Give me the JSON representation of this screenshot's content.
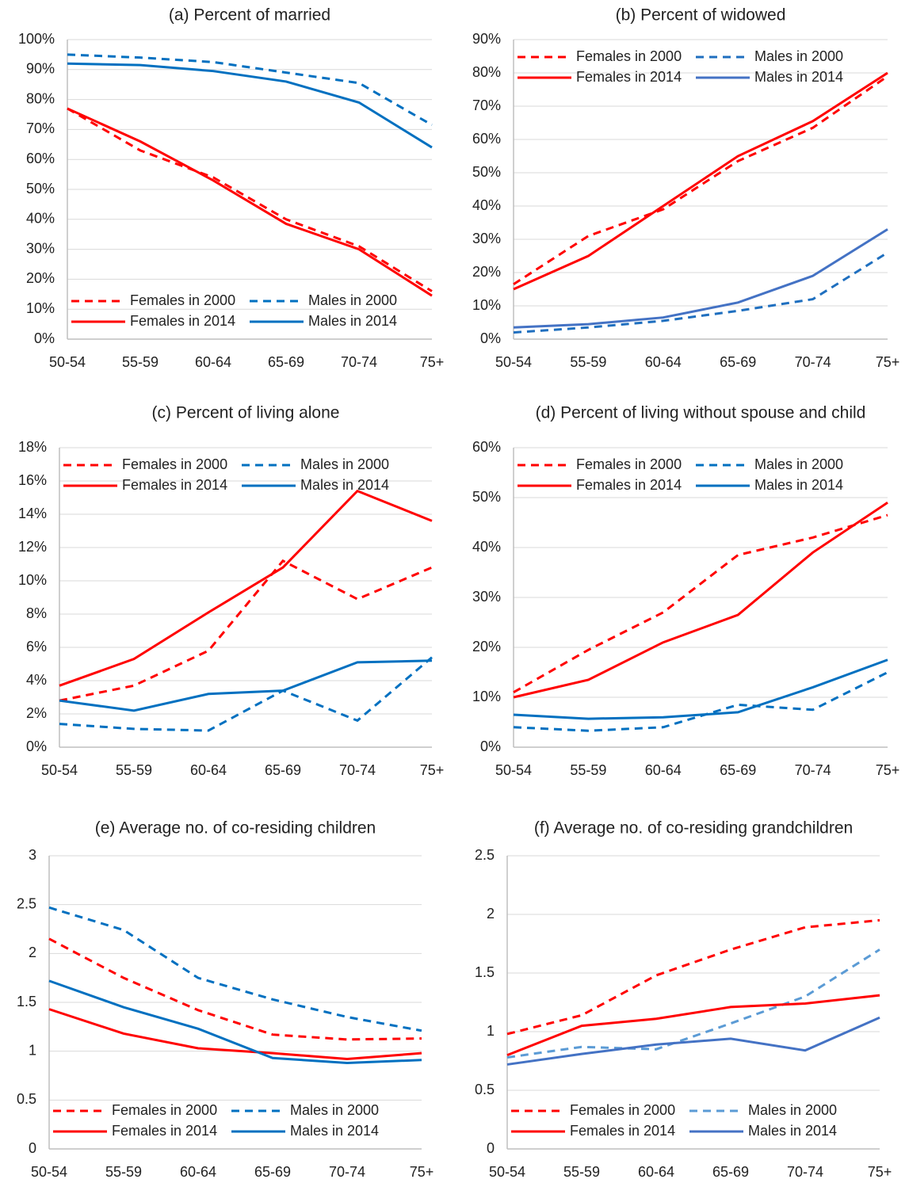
{
  "chart_data": [
    {
      "type": "line",
      "title": "(a) Percent of married",
      "categories": [
        "50-54",
        "55-59",
        "60-64",
        "65-69",
        "70-74",
        "75+"
      ],
      "ylim": [
        0,
        100
      ],
      "yticks": [
        {
          "value": 0,
          "label": "0%"
        },
        {
          "value": 10,
          "label": "10%"
        },
        {
          "value": 20,
          "label": "20%"
        },
        {
          "value": 30,
          "label": "30%"
        },
        {
          "value": 40,
          "label": "40%"
        },
        {
          "value": 50,
          "label": "50%"
        },
        {
          "value": 60,
          "label": "60%"
        },
        {
          "value": 70,
          "label": "70%"
        },
        {
          "value": 80,
          "label": "80%"
        },
        {
          "value": 90,
          "label": "90%"
        },
        {
          "value": 100,
          "label": "100%"
        }
      ],
      "grid": true,
      "legend": "lower center",
      "series": [
        {
          "name": "Females in 2000",
          "color": "#ff0000",
          "style": "dashed",
          "values": [
            77,
            63,
            54,
            40,
            31,
            16
          ]
        },
        {
          "name": "Males in 2000",
          "color": "#0070c0",
          "style": "dashed",
          "values": [
            95,
            94,
            92.5,
            89,
            85.5,
            71.5
          ]
        },
        {
          "name": "Females in 2014",
          "color": "#ff0000",
          "style": "solid",
          "values": [
            77,
            66,
            53,
            38.5,
            30,
            14.5
          ]
        },
        {
          "name": "Males in 2014",
          "color": "#0070c0",
          "style": "solid",
          "values": [
            92,
            91.5,
            89.5,
            86,
            79,
            64
          ]
        }
      ]
    },
    {
      "type": "line",
      "title": "(b) Percent of widowed",
      "categories": [
        "50-54",
        "55-59",
        "60-64",
        "65-69",
        "70-74",
        "75+"
      ],
      "ylim": [
        0,
        90
      ],
      "yticks": [
        {
          "value": 0,
          "label": "0%"
        },
        {
          "value": 10,
          "label": "10%"
        },
        {
          "value": 20,
          "label": "20%"
        },
        {
          "value": 30,
          "label": "30%"
        },
        {
          "value": 40,
          "label": "40%"
        },
        {
          "value": 50,
          "label": "50%"
        },
        {
          "value": 60,
          "label": "60%"
        },
        {
          "value": 70,
          "label": "70%"
        },
        {
          "value": 80,
          "label": "80%"
        },
        {
          "value": 90,
          "label": "90%"
        }
      ],
      "grid": true,
      "legend": "upper center",
      "series": [
        {
          "name": "Females in 2000",
          "color": "#ff0000",
          "style": "dashed",
          "values": [
            16.5,
            31,
            39,
            53.5,
            63.5,
            79
          ]
        },
        {
          "name": "Males in 2000",
          "color": "#1f6fbf",
          "style": "dashed",
          "values": [
            2,
            3.5,
            5.5,
            8.5,
            12,
            26
          ]
        },
        {
          "name": "Females in 2014",
          "color": "#ff0000",
          "style": "solid",
          "values": [
            15,
            25,
            40,
            55,
            65.5,
            80
          ]
        },
        {
          "name": "Males in 2014",
          "color": "#4472c4",
          "style": "solid",
          "values": [
            3.5,
            4.5,
            6.5,
            11,
            19,
            33
          ]
        }
      ]
    },
    {
      "type": "line",
      "title": "(c) Percent of living alone",
      "categories": [
        "50-54",
        "55-59",
        "60-64",
        "65-69",
        "70-74",
        "75+"
      ],
      "ylim": [
        0,
        18
      ],
      "yticks": [
        {
          "value": 0,
          "label": "0%"
        },
        {
          "value": 2,
          "label": "2%"
        },
        {
          "value": 4,
          "label": "4%"
        },
        {
          "value": 6,
          "label": "6%"
        },
        {
          "value": 8,
          "label": "8%"
        },
        {
          "value": 10,
          "label": "10%"
        },
        {
          "value": 12,
          "label": "12%"
        },
        {
          "value": 14,
          "label": "14%"
        },
        {
          "value": 16,
          "label": "16%"
        },
        {
          "value": 18,
          "label": "18%"
        }
      ],
      "grid": true,
      "legend": "upper center",
      "series": [
        {
          "name": "Females in 2000",
          "color": "#ff0000",
          "style": "dashed",
          "values": [
            2.8,
            3.7,
            5.8,
            11.2,
            8.9,
            10.8
          ]
        },
        {
          "name": "Males in 2000",
          "color": "#0070c0",
          "style": "dashed",
          "values": [
            1.4,
            1.1,
            1.0,
            3.4,
            1.6,
            5.4
          ]
        },
        {
          "name": "Females in 2014",
          "color": "#ff0000",
          "style": "solid",
          "values": [
            3.7,
            5.3,
            8.1,
            10.8,
            15.4,
            13.6
          ]
        },
        {
          "name": "Males in 2014",
          "color": "#0070c0",
          "style": "solid",
          "values": [
            2.8,
            2.2,
            3.2,
            3.4,
            5.1,
            5.2
          ]
        }
      ]
    },
    {
      "type": "line",
      "title": "(d) Percent of living without spouse and child",
      "categories": [
        "50-54",
        "55-59",
        "60-64",
        "65-69",
        "70-74",
        "75+"
      ],
      "ylim": [
        0,
        60
      ],
      "yticks": [
        {
          "value": 0,
          "label": "0%"
        },
        {
          "value": 10,
          "label": "10%"
        },
        {
          "value": 20,
          "label": "20%"
        },
        {
          "value": 30,
          "label": "30%"
        },
        {
          "value": 40,
          "label": "40%"
        },
        {
          "value": 50,
          "label": "50%"
        },
        {
          "value": 60,
          "label": "60%"
        }
      ],
      "grid": true,
      "legend": "upper center",
      "series": [
        {
          "name": "Females in 2000",
          "color": "#ff0000",
          "style": "dashed",
          "values": [
            11,
            19.5,
            27,
            38.5,
            42,
            46.5
          ]
        },
        {
          "name": "Males in 2000",
          "color": "#0070c0",
          "style": "dashed",
          "values": [
            4,
            3.3,
            4,
            8.5,
            7.5,
            15
          ]
        },
        {
          "name": "Females in 2014",
          "color": "#ff0000",
          "style": "solid",
          "values": [
            10,
            13.5,
            21,
            26.5,
            39,
            49
          ]
        },
        {
          "name": "Males in 2014",
          "color": "#0070c0",
          "style": "solid",
          "values": [
            6.5,
            5.7,
            6,
            7,
            12,
            17.5
          ]
        }
      ]
    },
    {
      "type": "line",
      "title": "(e) Average no. of co-residing children",
      "categories": [
        "50-54",
        "55-59",
        "60-64",
        "65-69",
        "70-74",
        "75+"
      ],
      "ylim": [
        0,
        3
      ],
      "yticks": [
        0,
        0.5,
        1,
        1.5,
        2,
        2.5,
        3
      ],
      "grid": true,
      "legend": "lower center",
      "series": [
        {
          "name": "Females in 2000",
          "color": "#ff0000",
          "style": "dashed",
          "values": [
            2.15,
            1.75,
            1.42,
            1.17,
            1.12,
            1.13
          ]
        },
        {
          "name": "Males in 2000",
          "color": "#0070c0",
          "style": "dashed",
          "values": [
            2.47,
            2.24,
            1.75,
            1.53,
            1.35,
            1.21
          ]
        },
        {
          "name": "Females in 2014",
          "color": "#ff0000",
          "style": "solid",
          "values": [
            1.43,
            1.18,
            1.03,
            0.98,
            0.92,
            0.98
          ]
        },
        {
          "name": "Males in 2014",
          "color": "#0070c0",
          "style": "solid",
          "values": [
            1.72,
            1.45,
            1.23,
            0.93,
            0.88,
            0.91
          ]
        }
      ]
    },
    {
      "type": "line",
      "title": "(f) Average no. of co-residing grandchildren",
      "categories": [
        "50-54",
        "55-59",
        "60-64",
        "65-69",
        "70-74",
        "75+"
      ],
      "ylim": [
        0,
        2.5
      ],
      "yticks": [
        0,
        0.5,
        1,
        1.5,
        2,
        2.5
      ],
      "grid": true,
      "legend": "lower center",
      "series": [
        {
          "name": "Females in 2000",
          "color": "#ff0000",
          "style": "dashed",
          "values": [
            0.98,
            1.14,
            1.48,
            1.7,
            1.89,
            1.95
          ]
        },
        {
          "name": "Males in 2000",
          "color": "#5b9bd5",
          "style": "dashed",
          "values": [
            0.78,
            0.87,
            0.85,
            1.07,
            1.3,
            1.7
          ]
        },
        {
          "name": "Females in 2014",
          "color": "#ff0000",
          "style": "solid",
          "values": [
            0.8,
            1.05,
            1.11,
            1.21,
            1.24,
            1.31
          ]
        },
        {
          "name": "Males in 2014",
          "color": "#4472c4",
          "style": "solid",
          "values": [
            0.72,
            0.81,
            0.89,
            0.94,
            0.84,
            1.12
          ]
        }
      ]
    }
  ]
}
